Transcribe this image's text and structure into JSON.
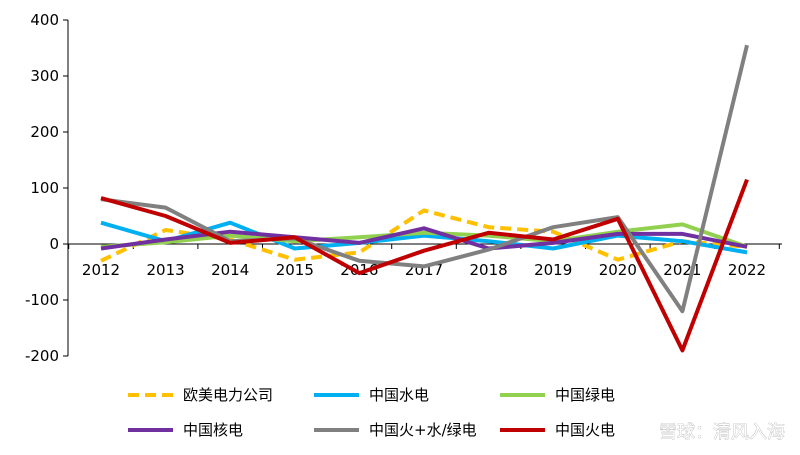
{
  "chart_data": {
    "type": "line",
    "categories": [
      "2012",
      "2013",
      "2014",
      "2015",
      "2016",
      "2017",
      "2018",
      "2019",
      "2020",
      "2021",
      "2022"
    ],
    "ylim": [
      -200,
      400
    ],
    "yticks": [
      -200,
      -100,
      0,
      100,
      200,
      300,
      400
    ],
    "ytick_labels": [
      "-200",
      "-100",
      "0",
      "100",
      "200",
      "300",
      "400"
    ],
    "title": "",
    "xlabel": "",
    "ylabel": "",
    "grid": false,
    "legend_position": "bottom",
    "series": [
      {
        "name": "欧美电力公司",
        "color": "#FFC000",
        "dashed": true,
        "values": [
          -30,
          25,
          8,
          -28,
          -15,
          60,
          30,
          22,
          -28,
          5,
          -5
        ]
      },
      {
        "name": "中国水电",
        "color": "#00B0F0",
        "dashed": false,
        "values": [
          38,
          5,
          38,
          -8,
          2,
          15,
          5,
          -8,
          15,
          5,
          -15
        ]
      },
      {
        "name": "中国绿电",
        "color": "#92D050",
        "dashed": false,
        "values": [
          -5,
          3,
          15,
          5,
          12,
          20,
          15,
          5,
          22,
          35,
          -5
        ]
      },
      {
        "name": "中国核电",
        "color": "#7030A0",
        "dashed": false,
        "values": [
          -8,
          8,
          22,
          12,
          2,
          28,
          -8,
          2,
          18,
          18,
          -5
        ]
      },
      {
        "name": "中国火+水/绿电",
        "color": "#808080",
        "dashed": false,
        "values": [
          80,
          65,
          5,
          10,
          -30,
          -40,
          -10,
          30,
          48,
          -120,
          355
        ]
      },
      {
        "name": "中国火电",
        "color": "#C00000",
        "dashed": false,
        "values": [
          82,
          50,
          2,
          12,
          -52,
          -12,
          20,
          8,
          45,
          -190,
          115
        ]
      }
    ]
  },
  "watermark": "雪球：清风入海"
}
